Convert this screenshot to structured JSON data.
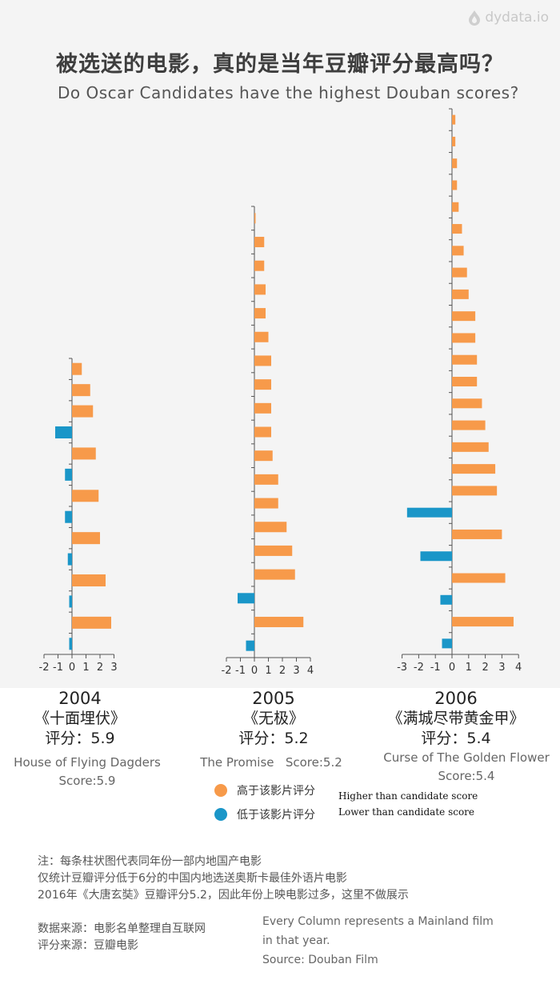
{
  "logo": {
    "text": "dydata.io",
    "icon": "flame-drop-icon"
  },
  "title": {
    "cn": "被选送的电影，真的是当年豆瓣评分最高吗？",
    "en": "Do Oscar Candidates have the highest Douban scores?"
  },
  "colors": {
    "higher": "#f79a4a",
    "lower": "#1a96c8",
    "axis": "#555555"
  },
  "chart_data": [
    {
      "type": "bar",
      "year": "2004",
      "film_cn": "《十面埋伏》",
      "score_cn": "评分：5.9",
      "film_en": "House of Flying Dagders",
      "score_en": "Score:5.9",
      "xlim": [
        -2,
        3
      ],
      "x_ticks": [
        "-2",
        "-1",
        "0",
        "1",
        "2",
        "3"
      ],
      "values": [
        0.7,
        1.3,
        1.5,
        -1.2,
        1.7,
        -0.5,
        1.9,
        -0.5,
        2.0,
        -0.3,
        2.4,
        -0.2,
        2.8,
        -0.2
      ]
    },
    {
      "type": "bar",
      "year": "2005",
      "film_cn": "《无极》",
      "score_cn": "评分：5.2",
      "film_en": "The Promise",
      "score_en": "Score:5.2",
      "xlim": [
        -2,
        4
      ],
      "x_ticks": [
        "-2",
        "-1",
        "0",
        "1",
        "2",
        "3",
        "4"
      ],
      "values": [
        0.05,
        0.7,
        0.7,
        0.8,
        0.8,
        1.0,
        1.2,
        1.2,
        1.2,
        1.2,
        1.3,
        1.7,
        1.7,
        2.3,
        2.7,
        2.9,
        -1.2,
        3.5,
        -0.6
      ]
    },
    {
      "type": "bar",
      "year": "2006",
      "film_cn": "《满城尽带黄金甲》",
      "score_cn": "评分：5.4",
      "film_en": "Curse of The Golden Flower",
      "score_en": "Score:5.4",
      "xlim": [
        -3,
        4
      ],
      "x_ticks": [
        "-3",
        "-2",
        "-1",
        "0",
        "1",
        "2",
        "3",
        "4"
      ],
      "values": [
        0.2,
        0.2,
        0.3,
        0.3,
        0.4,
        0.6,
        0.7,
        0.9,
        1.0,
        1.4,
        1.4,
        1.5,
        1.5,
        1.8,
        2.0,
        2.2,
        2.6,
        2.7,
        -2.7,
        3.0,
        -1.9,
        3.2,
        -0.7,
        3.7,
        -0.6
      ]
    }
  ],
  "legend": {
    "higher_cn": "高于该影片评分",
    "lower_cn": "低于该影片评分",
    "higher_en": "Higher than candidate score",
    "lower_en": "Lower than candidate score"
  },
  "notes": {
    "line1": "注：每条柱状图代表同年份一部内地国产电影",
    "line2": "仅统计豆瓣评分低于6分的中国内地选送奥斯卡最佳外语片电影",
    "line3": "2016年《大唐玄奘》豆瓣评分5.2，因此年份上映电影过多，这里不做展示",
    "data_source": "数据来源：电影名单整理自互联网",
    "score_source": "评分来源：豆瓣电影",
    "en_line1": "Every Column represents a Mainland film",
    "en_line2": "in that year.",
    "en_line3": "Source: Douban Film"
  }
}
